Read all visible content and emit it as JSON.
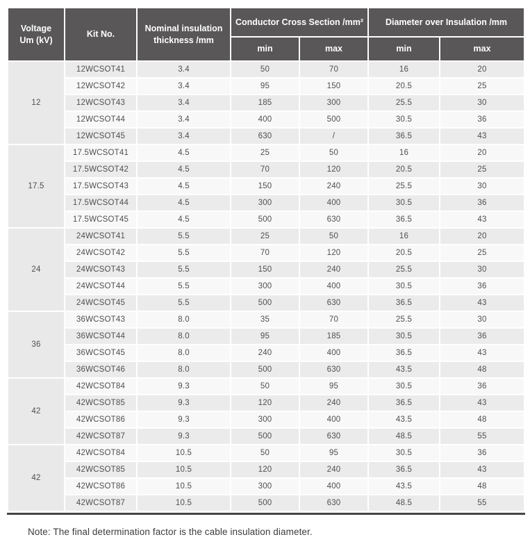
{
  "colors": {
    "header_bg": "#595757",
    "header_text": "#ffffff",
    "row_odd_bg": "#ebebeb",
    "row_even_bg": "#f8f8f8",
    "voltage_cell_bg": "#e9e9e9",
    "body_text": "#4f4f4f",
    "bottom_rule": "#454545",
    "note_text": "#3c3c3c"
  },
  "table": {
    "headers": {
      "voltage": "Voltage\nUm (kV)",
      "kit_no": "Kit No.",
      "nominal_thickness": "Nominal insulation\nthickness /mm",
      "conductor_cross_section": "Conductor Cross Section /mm²",
      "diameter_over_insulation": "Diameter over Insulation /mm",
      "min": "min",
      "max": "max"
    },
    "groups": [
      {
        "voltage": "12",
        "rows": [
          {
            "kit": "12WCSOT41",
            "thickness": "3.4",
            "ccs_min": "50",
            "ccs_max": "70",
            "dia_min": "16",
            "dia_max": "20"
          },
          {
            "kit": "12WCSOT42",
            "thickness": "3.4",
            "ccs_min": "95",
            "ccs_max": "150",
            "dia_min": "20.5",
            "dia_max": "25"
          },
          {
            "kit": "12WCSOT43",
            "thickness": "3.4",
            "ccs_min": "185",
            "ccs_max": "300",
            "dia_min": "25.5",
            "dia_max": "30"
          },
          {
            "kit": "12WCSOT44",
            "thickness": "3.4",
            "ccs_min": "400",
            "ccs_max": "500",
            "dia_min": "30.5",
            "dia_max": "36"
          },
          {
            "kit": "12WCSOT45",
            "thickness": "3.4",
            "ccs_min": "630",
            "ccs_max": "/",
            "dia_min": "36.5",
            "dia_max": "43"
          }
        ]
      },
      {
        "voltage": "17.5",
        "rows": [
          {
            "kit": "17.5WCSOT41",
            "thickness": "4.5",
            "ccs_min": "25",
            "ccs_max": "50",
            "dia_min": "16",
            "dia_max": "20"
          },
          {
            "kit": "17.5WCSOT42",
            "thickness": "4.5",
            "ccs_min": "70",
            "ccs_max": "120",
            "dia_min": "20.5",
            "dia_max": "25"
          },
          {
            "kit": "17.5WCSOT43",
            "thickness": "4.5",
            "ccs_min": "150",
            "ccs_max": "240",
            "dia_min": "25.5",
            "dia_max": "30"
          },
          {
            "kit": "17.5WCSOT44",
            "thickness": "4.5",
            "ccs_min": "300",
            "ccs_max": "400",
            "dia_min": "30.5",
            "dia_max": "36"
          },
          {
            "kit": "17.5WCSOT45",
            "thickness": "4.5",
            "ccs_min": "500",
            "ccs_max": "630",
            "dia_min": "36.5",
            "dia_max": "43"
          }
        ]
      },
      {
        "voltage": "24",
        "rows": [
          {
            "kit": "24WCSOT41",
            "thickness": "5.5",
            "ccs_min": "25",
            "ccs_max": "50",
            "dia_min": "16",
            "dia_max": "20"
          },
          {
            "kit": "24WCSOT42",
            "thickness": "5.5",
            "ccs_min": "70",
            "ccs_max": "120",
            "dia_min": "20.5",
            "dia_max": "25"
          },
          {
            "kit": "24WCSOT43",
            "thickness": "5.5",
            "ccs_min": "150",
            "ccs_max": "240",
            "dia_min": "25.5",
            "dia_max": "30"
          },
          {
            "kit": "24WCSOT44",
            "thickness": "5.5",
            "ccs_min": "300",
            "ccs_max": "400",
            "dia_min": "30.5",
            "dia_max": "36"
          },
          {
            "kit": "24WCSOT45",
            "thickness": "5.5",
            "ccs_min": "500",
            "ccs_max": "630",
            "dia_min": "36.5",
            "dia_max": "43"
          }
        ]
      },
      {
        "voltage": "36",
        "rows": [
          {
            "kit": "36WCSOT43",
            "thickness": "8.0",
            "ccs_min": "35",
            "ccs_max": "70",
            "dia_min": "25.5",
            "dia_max": "30"
          },
          {
            "kit": "36WCSOT44",
            "thickness": "8.0",
            "ccs_min": "95",
            "ccs_max": "185",
            "dia_min": "30.5",
            "dia_max": "36"
          },
          {
            "kit": "36WCSOT45",
            "thickness": "8.0",
            "ccs_min": "240",
            "ccs_max": "400",
            "dia_min": "36.5",
            "dia_max": "43"
          },
          {
            "kit": "36WCSOT46",
            "thickness": "8.0",
            "ccs_min": "500",
            "ccs_max": "630",
            "dia_min": "43.5",
            "dia_max": "48"
          }
        ]
      },
      {
        "voltage": "42",
        "rows": [
          {
            "kit": "42WCSOT84",
            "thickness": "9.3",
            "ccs_min": "50",
            "ccs_max": "95",
            "dia_min": "30.5",
            "dia_max": "36"
          },
          {
            "kit": "42WCSOT85",
            "thickness": "9.3",
            "ccs_min": "120",
            "ccs_max": "240",
            "dia_min": "36.5",
            "dia_max": "43"
          },
          {
            "kit": "42WCSOT86",
            "thickness": "9.3",
            "ccs_min": "300",
            "ccs_max": "400",
            "dia_min": "43.5",
            "dia_max": "48"
          },
          {
            "kit": "42WCSOT87",
            "thickness": "9.3",
            "ccs_min": "500",
            "ccs_max": "630",
            "dia_min": "48.5",
            "dia_max": "55"
          }
        ]
      },
      {
        "voltage": "42",
        "rows": [
          {
            "kit": "42WCSOT84",
            "thickness": "10.5",
            "ccs_min": "50",
            "ccs_max": "95",
            "dia_min": "30.5",
            "dia_max": "36"
          },
          {
            "kit": "42WCSOT85",
            "thickness": "10.5",
            "ccs_min": "120",
            "ccs_max": "240",
            "dia_min": "36.5",
            "dia_max": "43"
          },
          {
            "kit": "42WCSOT86",
            "thickness": "10.5",
            "ccs_min": "300",
            "ccs_max": "400",
            "dia_min": "43.5",
            "dia_max": "48"
          },
          {
            "kit": "42WCSOT87",
            "thickness": "10.5",
            "ccs_min": "500",
            "ccs_max": "630",
            "dia_min": "48.5",
            "dia_max": "55"
          }
        ]
      }
    ]
  },
  "note": "Note: The final determination factor is the cable insulation diameter."
}
